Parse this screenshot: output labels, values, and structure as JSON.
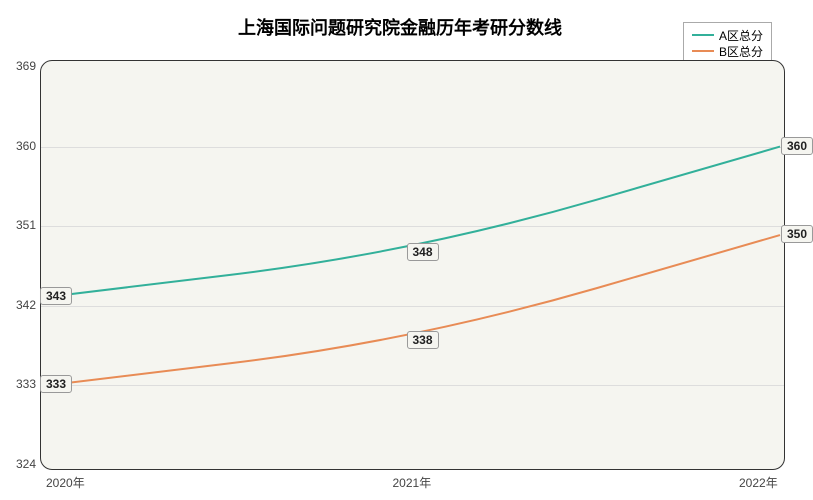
{
  "chart": {
    "type": "line",
    "title": "上海国际问题研究院金融历年考研分数线",
    "title_fontsize": 18,
    "background_color": "#ffffff",
    "plot_background": "#f5f5f0",
    "plot_border_color": "#333333",
    "plot_border_radius": 12,
    "grid_color": "#dddddd",
    "x": {
      "categories": [
        "2020年",
        "2021年",
        "2022年"
      ]
    },
    "y": {
      "min": 324,
      "max": 369,
      "ticks": [
        324,
        333,
        342,
        351,
        360,
        369
      ]
    },
    "series": [
      {
        "name": "A区总分",
        "color": "#32b09a",
        "line_width": 2,
        "values": [
          343,
          348,
          360
        ]
      },
      {
        "name": "B区总分",
        "color": "#e88b55",
        "line_width": 2,
        "values": [
          333,
          338,
          350
        ]
      }
    ],
    "label_fontsize": 12,
    "label_bg": "#f5f5f0",
    "label_border": "#999999"
  }
}
